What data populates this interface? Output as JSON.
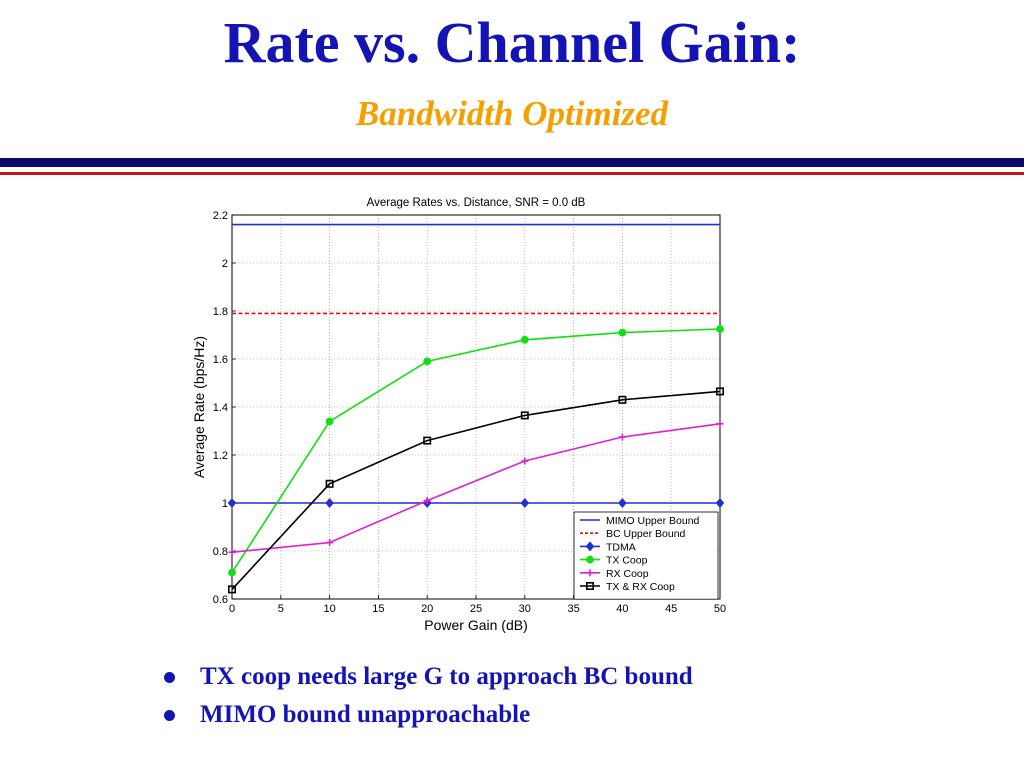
{
  "slide": {
    "title": "Rate vs. Channel Gain:",
    "subtitle": "Bandwidth Optimized",
    "colors": {
      "title": "#1414b4",
      "subtitle": "#f5a000",
      "rule_navy": "#0a0a6e",
      "rule_red": "#c81414"
    }
  },
  "bullets": [
    "TX coop needs large G to approach BC bound",
    "MIMO bound unapproachable"
  ],
  "chart_data": {
    "type": "line",
    "title": "Average Rates vs. Distance, SNR = 0.0 dB",
    "xlabel": "Power Gain (dB)",
    "ylabel": "Average Rate (bps/Hz)",
    "xlim": [
      0,
      50
    ],
    "ylim": [
      0.6,
      2.2
    ],
    "xticks": [
      0,
      5,
      10,
      15,
      20,
      25,
      30,
      35,
      40,
      45,
      50
    ],
    "yticks": [
      0.6,
      0.8,
      1,
      1.2,
      1.4,
      1.6,
      1.8,
      2,
      2.2
    ],
    "grid": true,
    "legend_position": "bottom-right",
    "series": [
      {
        "name": "MIMO Upper Bound",
        "color": "#1f2fd0",
        "dash": "solid",
        "marker": "none",
        "x": [
          0,
          50
        ],
        "y": [
          2.16,
          2.16
        ]
      },
      {
        "name": "BC Upper Bound",
        "color": "#e01010",
        "dash": "dashed",
        "marker": "none",
        "x": [
          0,
          50
        ],
        "y": [
          1.79,
          1.79
        ]
      },
      {
        "name": "TDMA",
        "color": "#1f2fd0",
        "dash": "solid",
        "marker": "diamond",
        "x": [
          0,
          10,
          20,
          30,
          40,
          50
        ],
        "y": [
          1.0,
          1.0,
          1.0,
          1.0,
          1.0,
          1.0
        ]
      },
      {
        "name": "TX Coop",
        "color": "#10e010",
        "dash": "solid",
        "marker": "circle",
        "x": [
          0,
          10,
          20,
          30,
          40,
          50
        ],
        "y": [
          0.71,
          1.34,
          1.59,
          1.68,
          1.71,
          1.725
        ]
      },
      {
        "name": "RX Coop",
        "color": "#e020d0",
        "dash": "solid",
        "marker": "plus",
        "x": [
          0,
          10,
          20,
          30,
          40,
          50
        ],
        "y": [
          0.795,
          0.835,
          1.01,
          1.175,
          1.275,
          1.33
        ]
      },
      {
        "name": "TX & RX Coop",
        "color": "#000000",
        "dash": "solid",
        "marker": "square",
        "x": [
          0,
          10,
          20,
          30,
          40,
          50
        ],
        "y": [
          0.64,
          1.08,
          1.26,
          1.365,
          1.43,
          1.465
        ]
      }
    ]
  }
}
